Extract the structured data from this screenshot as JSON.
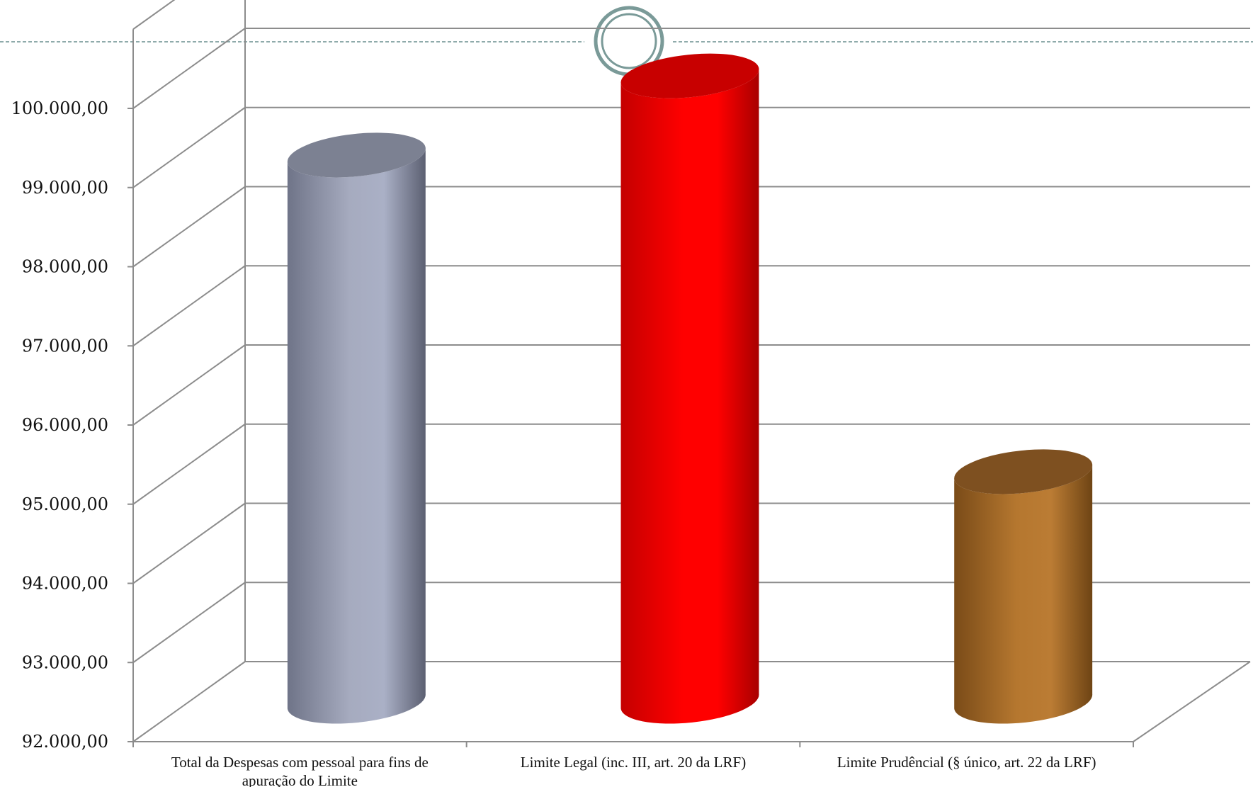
{
  "slide": {
    "has_dashed_rule": true,
    "decoration": "double-ring-ornament"
  },
  "chart_data": {
    "type": "bar",
    "style": "3d-cylinder",
    "title": "",
    "xlabel": "",
    "ylabel": "",
    "ylim": [
      92000,
      100000
    ],
    "yticks": [
      92000,
      93000,
      94000,
      95000,
      96000,
      97000,
      98000,
      99000,
      100000
    ],
    "ytick_labels": [
      "92.000,00",
      "93.000,00",
      "94.000,00",
      "95.000,00",
      "96.000,00",
      "97.000,00",
      "98.000,00",
      "99.000,00",
      "100.000,00"
    ],
    "grid": true,
    "legend": "none",
    "categories": [
      [
        "Total da Despesas com pessoal para fins de",
        "apuração do Limite"
      ],
      [
        "Limite Legal (inc. III, art. 20 da LRF)"
      ],
      [
        "Limite Prudêncial (§ único, art. 22 da LRF)"
      ]
    ],
    "values": [
      98900,
      99900,
      94900
    ],
    "colors": [
      "#a8adc2",
      "#ff0000",
      "#b87a33"
    ]
  }
}
